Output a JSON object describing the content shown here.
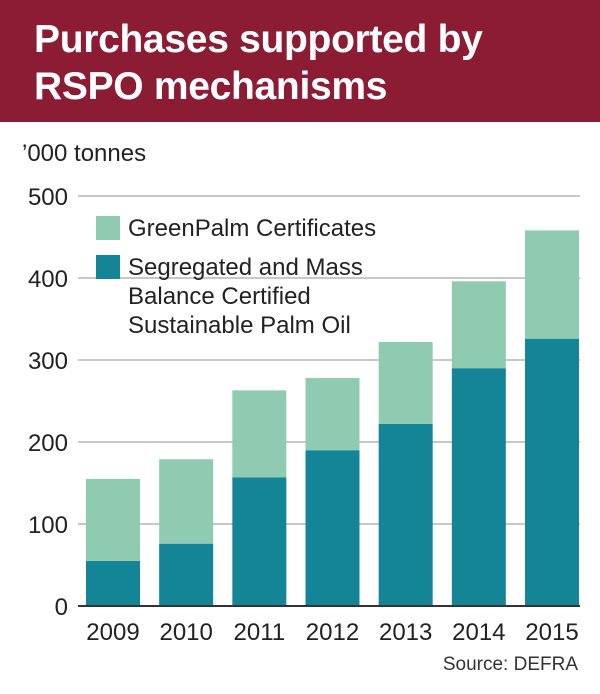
{
  "header": {
    "title": "Purchases supported by RSPO mechanisms"
  },
  "source": "Source: DEFRA",
  "colors": {
    "header_bg": "#8b1c34",
    "greenpalm": "#8fcbb1",
    "segregated": "#138596",
    "grid": "#a8a8a8"
  },
  "chart_data": {
    "type": "bar",
    "stacked": true,
    "ylabel": "’000 tonnes",
    "ylim": [
      0,
      500
    ],
    "yticks": [
      0,
      100,
      200,
      300,
      400,
      500
    ],
    "grid": true,
    "legend_position": "top-left",
    "categories": [
      "2009",
      "2010",
      "2011",
      "2012",
      "2013",
      "2014",
      "2015"
    ],
    "series": [
      {
        "name": "Segregated and Mass Balance Certified Sustainable Palm Oil",
        "legend_lines": [
          "Segregated and Mass",
          "Balance Certified",
          "Sustainable Palm Oil"
        ],
        "color": "#138596",
        "values": [
          55,
          76,
          157,
          190,
          222,
          290,
          326
        ]
      },
      {
        "name": "GreenPalm Certificates",
        "legend_lines": [
          "GreenPalm Certificates"
        ],
        "color": "#8fcbb1",
        "values": [
          100,
          103,
          106,
          88,
          100,
          106,
          132
        ]
      }
    ]
  }
}
